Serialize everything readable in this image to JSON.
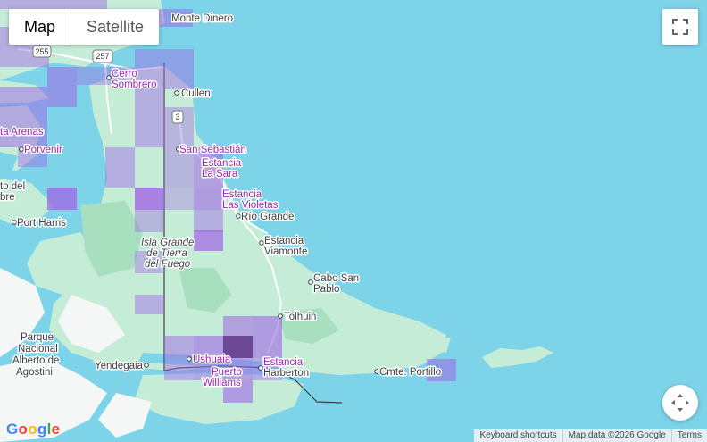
{
  "map_type_control": {
    "map_label": "Map",
    "satellite_label": "Satellite",
    "selected": "Map"
  },
  "places": {
    "monte_dinero": "Monte Dinero",
    "cerro_sombrero_1": "Cerro",
    "cerro_sombrero_2": "Sombrero",
    "cullen": "Cullen",
    "punta_arenas": "ta Arenas",
    "porvenir": "Porvenir",
    "san_sebastian": "San Sebastián",
    "estancia_la_sara_1": "Estancia",
    "estancia_la_sara_2": "La Sara",
    "puerto_del_hambre_1": "to del",
    "puerto_del_hambre_2": "bre",
    "estancia_las_violetas_1": "Estancia",
    "estancia_las_violetas_2": "Las Violetas",
    "port_harris": "Port Harris",
    "rio_grande": "Río Grande",
    "isla_grande_1": "Isla Grande",
    "isla_grande_2": "de Tierra",
    "isla_grande_3": "del Fuego",
    "estancia_viamonte_1": "Estancia",
    "estancia_viamonte_2": "Viamonte",
    "cabo_san_pablo_1": "Cabo San",
    "cabo_san_pablo_2": "Pablo",
    "tolhuin": "Tolhuin",
    "parque_1": "Parque",
    "parque_2": "Nacional",
    "parque_3": "Alberto de",
    "parque_4": "Agostini",
    "yendegaia": "Yendegaia",
    "ushuaia": "Ushuaia",
    "puerto_williams_1": "Puerto",
    "puerto_williams_2": "Williams",
    "estancia_harberton_1": "Estancia",
    "estancia_harberton_2": "Harberton",
    "cmte_portillo": "Cmte. Portillo"
  },
  "route_shields": {
    "r255": "255",
    "r257": "257",
    "r3": "3"
  },
  "footer": {
    "keyboard_shortcuts": "Keyboard shortcuts",
    "map_data": "Map data ©2026 Google",
    "terms": "Terms"
  },
  "logo": "Google",
  "colors": {
    "water": "#7dd3e8",
    "land": "#c5ecd7",
    "heat": "#a066e6",
    "heat_dark": "#5a2d8c"
  }
}
